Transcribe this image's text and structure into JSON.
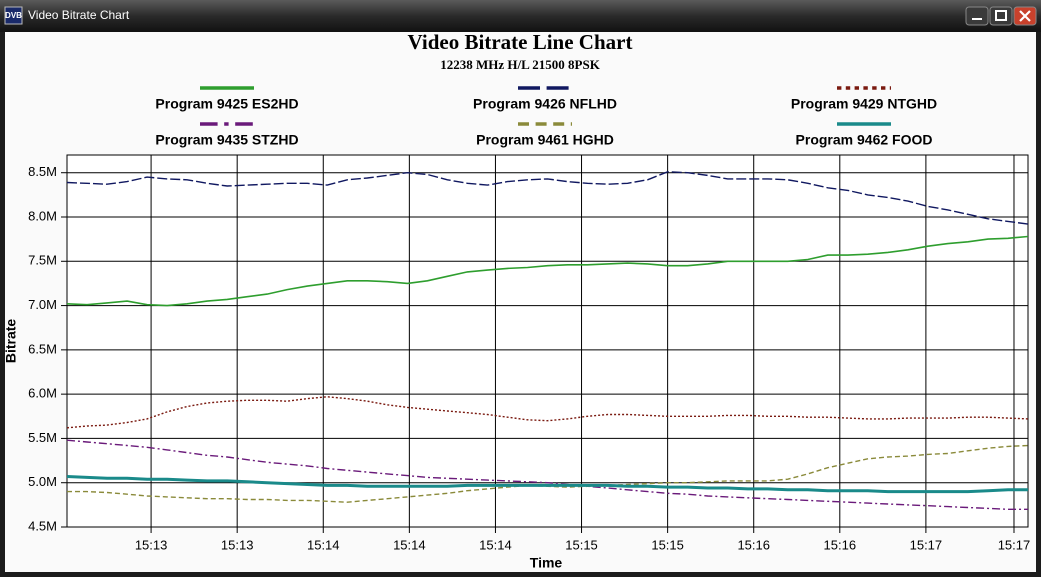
{
  "window": {
    "title": "Video Bitrate Chart",
    "icon": "DVB"
  },
  "chart_data": {
    "type": "line",
    "title": "Video Bitrate Line Chart",
    "subtitle": "12238 MHz H/L 21500 8PSK",
    "x_label": "Time",
    "y_label": "Bitrate",
    "grid": true,
    "x": [
      0,
      1,
      2,
      3,
      4,
      5,
      6,
      7,
      8,
      9,
      10,
      11,
      12,
      13,
      14,
      15,
      16,
      17,
      18,
      19,
      20,
      21,
      22,
      23,
      24,
      25,
      26,
      27,
      28,
      29,
      30,
      31,
      32,
      33,
      34,
      35,
      36,
      37,
      38,
      39,
      40,
      41,
      42,
      43,
      44,
      45,
      46,
      47,
      48
    ],
    "xlim": [
      0,
      48
    ],
    "xticks": [
      {
        "value": 4.2,
        "label": "15:13"
      },
      {
        "value": 8.5,
        "label": "15:13"
      },
      {
        "value": 12.8,
        "label": "15:14"
      },
      {
        "value": 17.1,
        "label": "15:14"
      },
      {
        "value": 21.4,
        "label": "15:14"
      },
      {
        "value": 25.7,
        "label": "15:15"
      },
      {
        "value": 30,
        "label": "15:15"
      },
      {
        "value": 34.3,
        "label": "15:16"
      },
      {
        "value": 38.6,
        "label": "15:16"
      },
      {
        "value": 42.9,
        "label": "15:17"
      },
      {
        "value": 47.3,
        "label": "15:17"
      }
    ],
    "ylim": [
      4.5,
      8.7
    ],
    "yticks": [
      {
        "value": 4.5,
        "label": "4.5M"
      },
      {
        "value": 5,
        "label": "5.0M"
      },
      {
        "value": 5.5,
        "label": "5.5M"
      },
      {
        "value": 6,
        "label": "6.0M"
      },
      {
        "value": 6.5,
        "label": "6.5M"
      },
      {
        "value": 7,
        "label": "7.0M"
      },
      {
        "value": 7.5,
        "label": "7.5M"
      },
      {
        "value": 8,
        "label": "8.0M"
      },
      {
        "value": 8.5,
        "label": "8.5M"
      }
    ],
    "series": [
      {
        "name": "Program 9425 ES2HD",
        "color": "#2e9e2e",
        "style": "solid",
        "values": [
          7.02,
          7.01,
          7.03,
          7.05,
          7.01,
          7.0,
          7.02,
          7.05,
          7.07,
          7.1,
          7.13,
          7.18,
          7.22,
          7.25,
          7.28,
          7.28,
          7.27,
          7.25,
          7.28,
          7.33,
          7.38,
          7.4,
          7.42,
          7.43,
          7.45,
          7.46,
          7.46,
          7.47,
          7.48,
          7.47,
          7.45,
          7.45,
          7.47,
          7.5,
          7.5,
          7.5,
          7.5,
          7.52,
          7.57,
          7.57,
          7.58,
          7.6,
          7.63,
          7.67,
          7.7,
          7.72,
          7.75,
          7.76,
          7.78
        ]
      },
      {
        "name": "Program 9426 NFLHD",
        "color": "#101860",
        "style": "long-dashed",
        "values": [
          8.39,
          8.38,
          8.37,
          8.4,
          8.45,
          8.43,
          8.42,
          8.38,
          8.35,
          8.36,
          8.37,
          8.38,
          8.38,
          8.36,
          8.42,
          8.44,
          8.47,
          8.5,
          8.48,
          8.42,
          8.38,
          8.36,
          8.4,
          8.42,
          8.43,
          8.4,
          8.38,
          8.37,
          8.38,
          8.42,
          8.51,
          8.5,
          8.47,
          8.43,
          8.43,
          8.43,
          8.42,
          8.38,
          8.33,
          8.3,
          8.25,
          8.22,
          8.18,
          8.12,
          8.08,
          8.03,
          7.98,
          7.95,
          7.92
        ]
      },
      {
        "name": "Program 9429 NTGHD",
        "color": "#7a1a10",
        "style": "dotted",
        "values": [
          5.62,
          5.64,
          5.65,
          5.68,
          5.72,
          5.8,
          5.86,
          5.9,
          5.92,
          5.93,
          5.93,
          5.92,
          5.95,
          5.97,
          5.95,
          5.92,
          5.88,
          5.85,
          5.83,
          5.81,
          5.79,
          5.77,
          5.74,
          5.71,
          5.7,
          5.72,
          5.75,
          5.77,
          5.77,
          5.76,
          5.75,
          5.75,
          5.75,
          5.76,
          5.76,
          5.75,
          5.75,
          5.74,
          5.74,
          5.73,
          5.72,
          5.72,
          5.73,
          5.73,
          5.73,
          5.74,
          5.74,
          5.73,
          5.72
        ]
      },
      {
        "name": "Program 9435 STZHD",
        "color": "#6a1a7a",
        "style": "dash-dot",
        "values": [
          5.48,
          5.46,
          5.44,
          5.42,
          5.4,
          5.37,
          5.34,
          5.31,
          5.29,
          5.26,
          5.23,
          5.21,
          5.19,
          5.16,
          5.14,
          5.12,
          5.1,
          5.08,
          5.06,
          5.05,
          5.04,
          5.03,
          5.02,
          5.01,
          5.0,
          4.98,
          4.96,
          4.94,
          4.92,
          4.9,
          4.88,
          4.87,
          4.85,
          4.84,
          4.83,
          4.82,
          4.81,
          4.8,
          4.79,
          4.78,
          4.77,
          4.76,
          4.75,
          4.74,
          4.73,
          4.72,
          4.71,
          4.7,
          4.7
        ]
      },
      {
        "name": "Program 9461 HGHD",
        "color": "#8a8a3a",
        "style": "dashed",
        "values": [
          4.9,
          4.9,
          4.89,
          4.87,
          4.85,
          4.84,
          4.83,
          4.82,
          4.82,
          4.81,
          4.81,
          4.8,
          4.8,
          4.79,
          4.78,
          4.8,
          4.82,
          4.84,
          4.86,
          4.88,
          4.91,
          4.93,
          4.95,
          4.97,
          4.96,
          4.95,
          4.96,
          4.97,
          4.98,
          4.99,
          5.0,
          5.0,
          5.01,
          5.02,
          5.02,
          5.02,
          5.04,
          5.1,
          5.17,
          5.22,
          5.27,
          5.29,
          5.3,
          5.32,
          5.33,
          5.36,
          5.39,
          5.41,
          5.42
        ]
      },
      {
        "name": "Program 9462 FOOD",
        "color": "#1a8a8a",
        "style": "thick",
        "values": [
          5.07,
          5.06,
          5.05,
          5.05,
          5.04,
          5.04,
          5.03,
          5.02,
          5.02,
          5.01,
          5.0,
          4.99,
          4.98,
          4.97,
          4.97,
          4.96,
          4.96,
          4.96,
          4.96,
          4.96,
          4.97,
          4.97,
          4.97,
          4.97,
          4.97,
          4.97,
          4.97,
          4.97,
          4.96,
          4.96,
          4.95,
          4.95,
          4.94,
          4.94,
          4.93,
          4.93,
          4.92,
          4.92,
          4.91,
          4.91,
          4.91,
          4.9,
          4.9,
          4.9,
          4.9,
          4.9,
          4.91,
          4.92,
          4.92
        ]
      }
    ]
  }
}
